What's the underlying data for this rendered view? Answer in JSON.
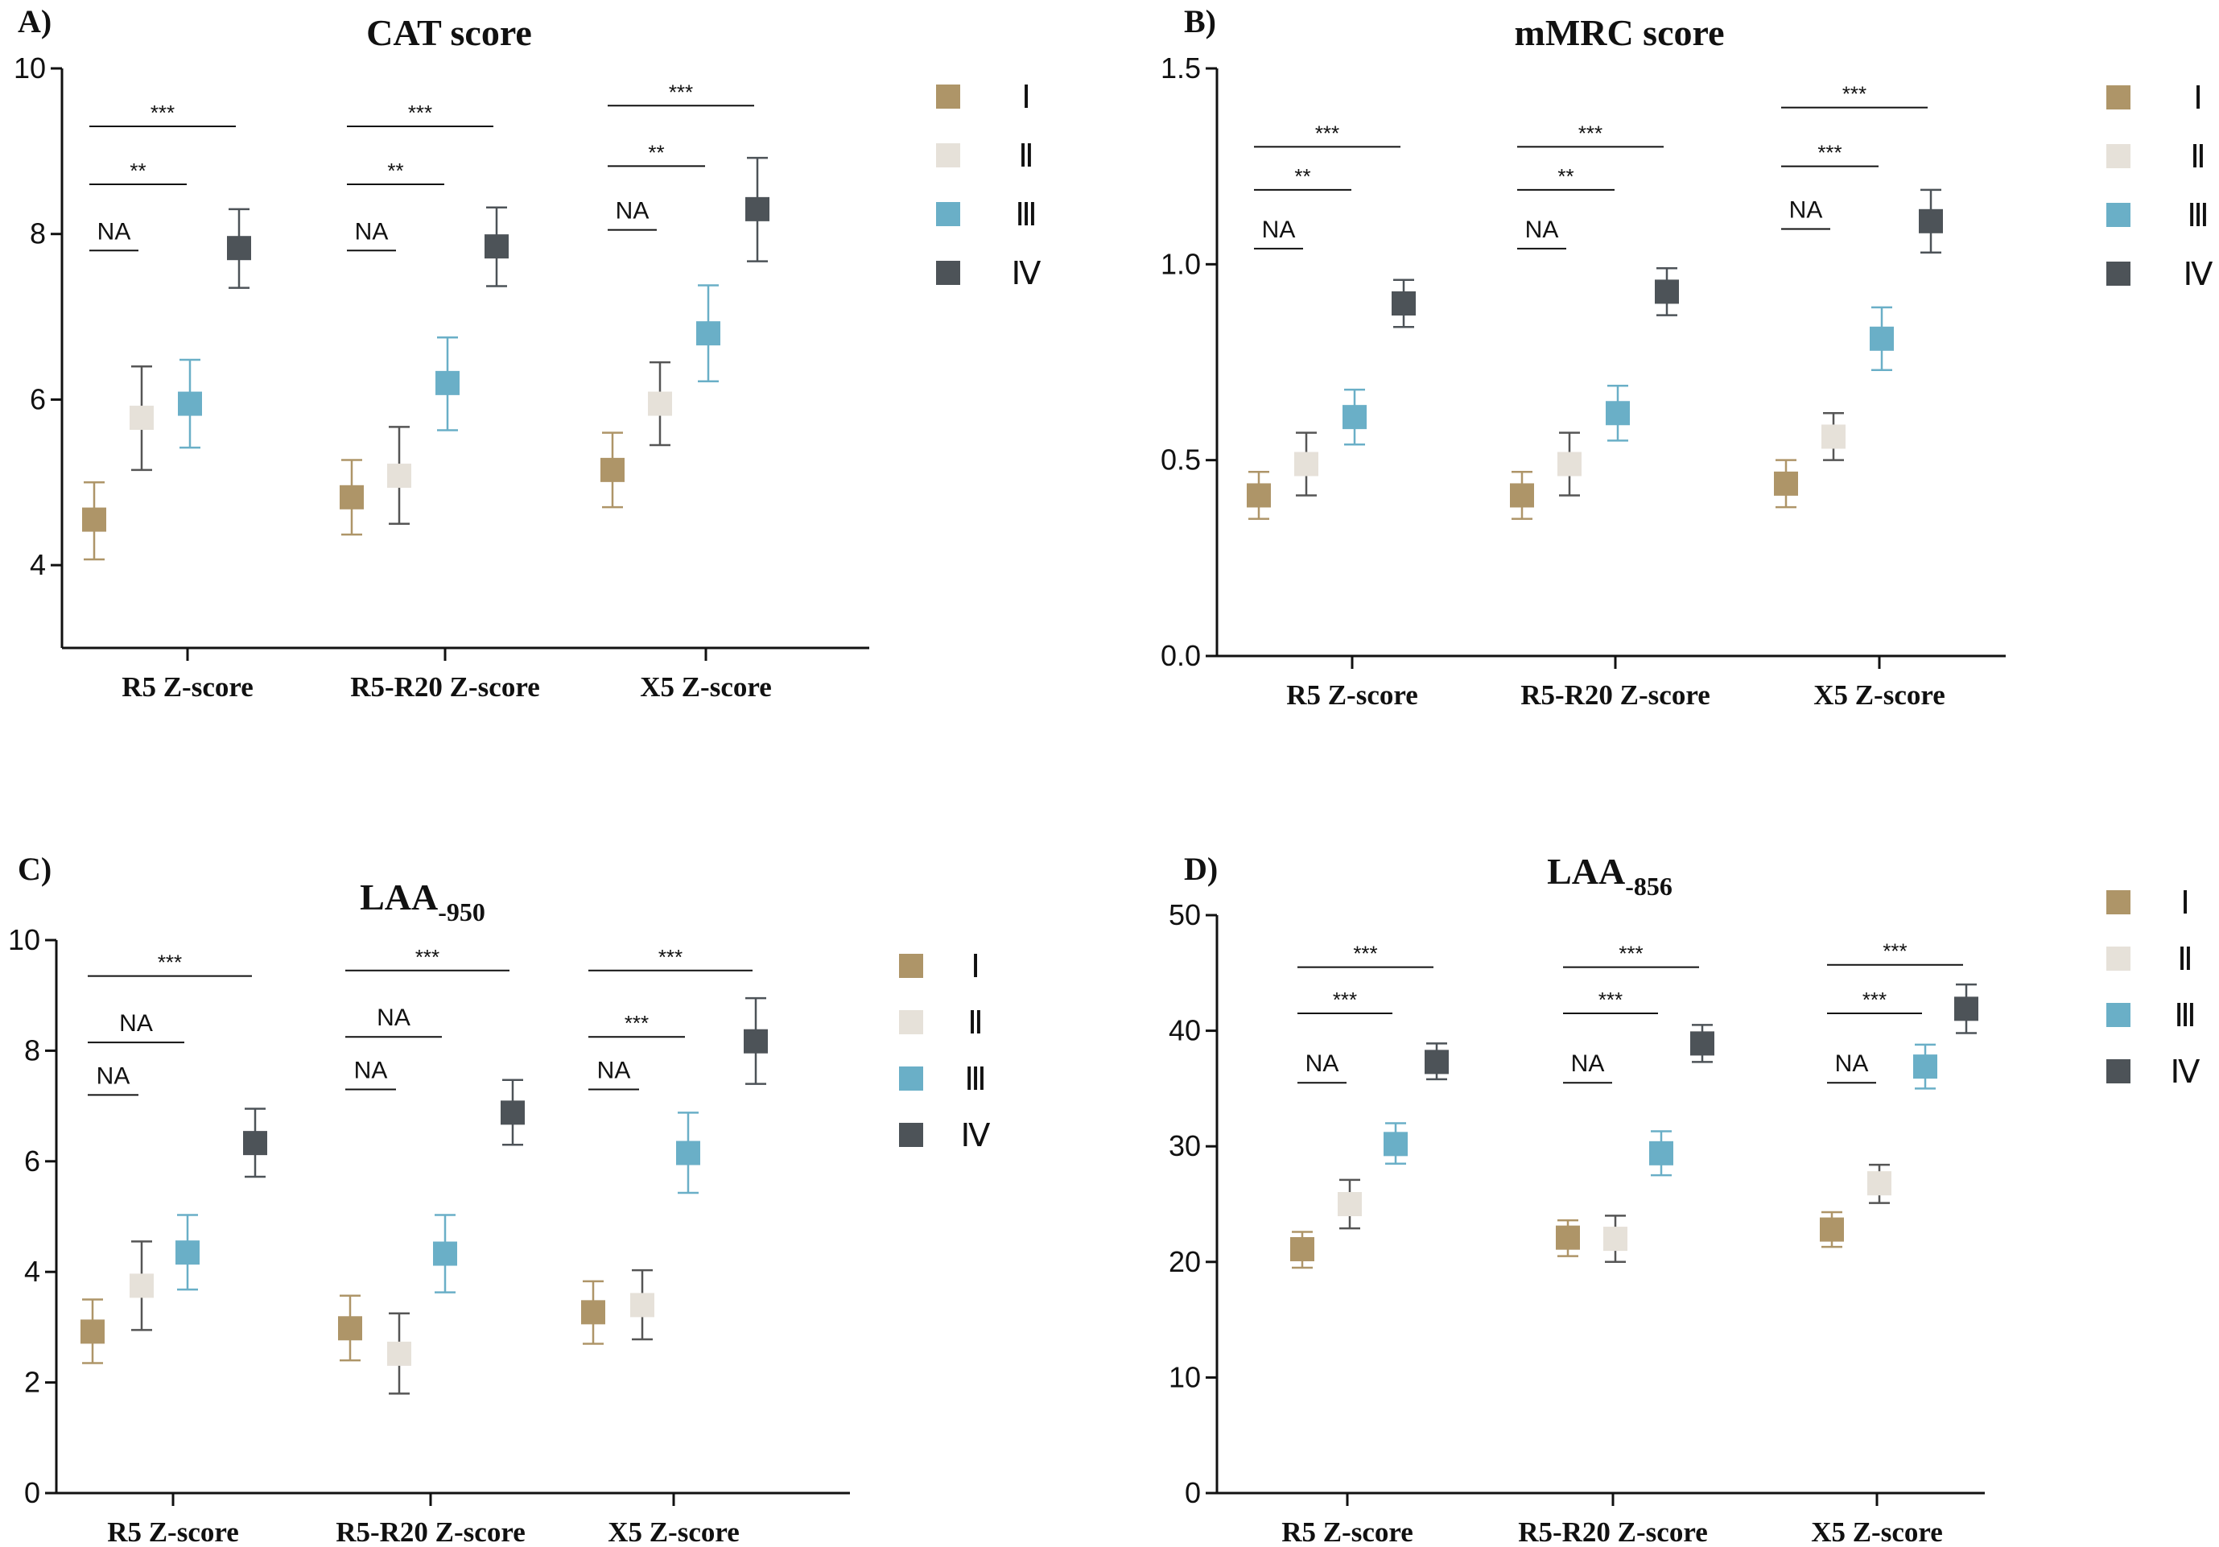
{
  "colors": {
    "I": "#ae9568",
    "II": "#e6e1d9",
    "III": "#6aafc7",
    "IV": "#4d5358",
    "axis": "#111111"
  },
  "chart_data": [
    {
      "type": "scatter",
      "panel_label": "A)",
      "title": "CAT score",
      "title_sub": "",
      "categories": [
        "R5 Z-score",
        "R5-R20 Z-score",
        "X5 Z-score"
      ],
      "ylim": [
        3,
        10
      ],
      "yticks": [
        "4",
        "6",
        "8",
        "10"
      ],
      "ytick_values": [
        4,
        6,
        8,
        10
      ],
      "legend": [
        "Ⅰ",
        "Ⅱ",
        "Ⅲ",
        "Ⅳ"
      ],
      "legend_placement": "right",
      "series": [
        {
          "name": "Ⅰ",
          "values": [
            4.55,
            4.82,
            5.15
          ],
          "low": [
            4.07,
            4.37,
            4.7
          ],
          "high": [
            5.0,
            5.27,
            5.6
          ]
        },
        {
          "name": "Ⅱ",
          "values": [
            5.78,
            5.08,
            5.95
          ],
          "low": [
            5.15,
            4.5,
            5.45
          ],
          "high": [
            6.4,
            5.67,
            6.45
          ]
        },
        {
          "name": "Ⅲ",
          "values": [
            5.95,
            6.2,
            6.8
          ],
          "low": [
            5.42,
            5.63,
            6.22
          ],
          "high": [
            6.48,
            6.75,
            7.38
          ]
        },
        {
          "name": "Ⅳ",
          "values": [
            7.83,
            7.85,
            8.3
          ],
          "low": [
            7.35,
            7.37,
            7.67
          ],
          "high": [
            8.3,
            8.32,
            8.92
          ]
        }
      ],
      "annotations": [
        {
          "group": 0,
          "from": 0,
          "to": 3,
          "level": 9.3,
          "text": "***"
        },
        {
          "group": 0,
          "from": 0,
          "to": 2,
          "level": 8.6,
          "text": "**"
        },
        {
          "group": 0,
          "from": 0,
          "to": 1,
          "level": 7.8,
          "text": "NA"
        },
        {
          "group": 1,
          "from": 0,
          "to": 3,
          "level": 9.3,
          "text": "***"
        },
        {
          "group": 1,
          "from": 0,
          "to": 2,
          "level": 8.6,
          "text": "**"
        },
        {
          "group": 1,
          "from": 0,
          "to": 1,
          "level": 7.8,
          "text": "NA"
        },
        {
          "group": 2,
          "from": 0,
          "to": 3,
          "level": 9.55,
          "text": "***"
        },
        {
          "group": 2,
          "from": 0,
          "to": 2,
          "level": 8.82,
          "text": "**"
        },
        {
          "group": 2,
          "from": 0,
          "to": 1,
          "level": 8.05,
          "text": "NA"
        }
      ]
    },
    {
      "type": "scatter",
      "panel_label": "B)",
      "title": "mMRC score",
      "title_sub": "",
      "categories": [
        "R5 Z-score",
        "R5-R20 Z-score",
        "X5 Z-score"
      ],
      "ylim": [
        0,
        1.5
      ],
      "yticks": [
        "0.0",
        "0.5",
        "1.0",
        "1.5"
      ],
      "ytick_values": [
        0,
        0.5,
        1.0,
        1.5
      ],
      "legend": [
        "Ⅰ",
        "Ⅱ",
        "Ⅲ",
        "Ⅳ"
      ],
      "legend_placement": "right",
      "series": [
        {
          "name": "Ⅰ",
          "values": [
            0.41,
            0.41,
            0.44
          ],
          "low": [
            0.35,
            0.35,
            0.38
          ],
          "high": [
            0.47,
            0.47,
            0.5
          ]
        },
        {
          "name": "Ⅱ",
          "values": [
            0.49,
            0.49,
            0.56
          ],
          "low": [
            0.41,
            0.41,
            0.5
          ],
          "high": [
            0.57,
            0.57,
            0.62
          ]
        },
        {
          "name": "Ⅲ",
          "values": [
            0.61,
            0.62,
            0.81
          ],
          "low": [
            0.54,
            0.55,
            0.73
          ],
          "high": [
            0.68,
            0.69,
            0.89
          ]
        },
        {
          "name": "Ⅳ",
          "values": [
            0.9,
            0.93,
            1.11
          ],
          "low": [
            0.84,
            0.87,
            1.03
          ],
          "high": [
            0.96,
            0.99,
            1.19
          ]
        }
      ],
      "annotations": [
        {
          "group": 0,
          "from": 0,
          "to": 3,
          "level": 1.3,
          "text": "***"
        },
        {
          "group": 0,
          "from": 0,
          "to": 2,
          "level": 1.19,
          "text": "**"
        },
        {
          "group": 0,
          "from": 0,
          "to": 1,
          "level": 1.04,
          "text": "NA"
        },
        {
          "group": 1,
          "from": 0,
          "to": 3,
          "level": 1.3,
          "text": "***"
        },
        {
          "group": 1,
          "from": 0,
          "to": 2,
          "level": 1.19,
          "text": "**"
        },
        {
          "group": 1,
          "from": 0,
          "to": 1,
          "level": 1.04,
          "text": "NA"
        },
        {
          "group": 2,
          "from": 0,
          "to": 3,
          "level": 1.4,
          "text": "***"
        },
        {
          "group": 2,
          "from": 0,
          "to": 2,
          "level": 1.25,
          "text": "***"
        },
        {
          "group": 2,
          "from": 0,
          "to": 1,
          "level": 1.09,
          "text": "NA"
        }
      ]
    },
    {
      "type": "scatter",
      "panel_label": "C)",
      "title": "LAA",
      "title_sub": "-950",
      "categories": [
        "R5 Z-score",
        "R5-R20 Z-score",
        "X5 Z-score"
      ],
      "ylim": [
        0,
        10
      ],
      "yticks": [
        "0",
        "2",
        "4",
        "6",
        "8",
        "10"
      ],
      "ytick_values": [
        0,
        2,
        4,
        6,
        8,
        10
      ],
      "legend": [
        "Ⅰ",
        "Ⅱ",
        "Ⅲ",
        "Ⅳ"
      ],
      "legend_placement": "right",
      "series": [
        {
          "name": "Ⅰ",
          "values": [
            2.92,
            2.98,
            3.27
          ],
          "low": [
            2.35,
            2.4,
            2.7
          ],
          "high": [
            3.5,
            3.57,
            3.83
          ]
        },
        {
          "name": "Ⅱ",
          "values": [
            3.75,
            2.52,
            3.4
          ],
          "low": [
            2.95,
            1.8,
            2.78
          ],
          "high": [
            4.55,
            3.25,
            4.03
          ]
        },
        {
          "name": "Ⅲ",
          "values": [
            4.35,
            4.33,
            6.15
          ],
          "low": [
            3.68,
            3.63,
            5.43
          ],
          "high": [
            5.03,
            5.03,
            6.88
          ]
        },
        {
          "name": "Ⅳ",
          "values": [
            6.33,
            6.88,
            8.17
          ],
          "low": [
            5.72,
            6.3,
            7.4
          ],
          "high": [
            6.95,
            7.47,
            8.95
          ]
        }
      ],
      "annotations": [
        {
          "group": 0,
          "from": 0,
          "to": 3,
          "level": 9.35,
          "text": "***"
        },
        {
          "group": 0,
          "from": 0,
          "to": 2,
          "level": 8.15,
          "text": "NA"
        },
        {
          "group": 0,
          "from": 0,
          "to": 1,
          "level": 7.2,
          "text": "NA"
        },
        {
          "group": 1,
          "from": 0,
          "to": 3,
          "level": 9.45,
          "text": "***"
        },
        {
          "group": 1,
          "from": 0,
          "to": 2,
          "level": 8.25,
          "text": "NA"
        },
        {
          "group": 1,
          "from": 0,
          "to": 1,
          "level": 7.3,
          "text": "NA"
        },
        {
          "group": 2,
          "from": 0,
          "to": 3,
          "level": 9.45,
          "text": "***"
        },
        {
          "group": 2,
          "from": 0,
          "to": 2,
          "level": 8.25,
          "text": "***"
        },
        {
          "group": 2,
          "from": 0,
          "to": 1,
          "level": 7.3,
          "text": "NA"
        }
      ]
    },
    {
      "type": "scatter",
      "panel_label": "D)",
      "title": "LAA",
      "title_sub": "-856",
      "categories": [
        "R5 Z-score",
        "R5-R20 Z-score",
        "X5 Z-score"
      ],
      "ylim": [
        0,
        50
      ],
      "yticks": [
        "0",
        "10",
        "20",
        "30",
        "40",
        "50"
      ],
      "ytick_values": [
        0,
        10,
        20,
        30,
        40,
        50
      ],
      "legend": [
        "Ⅰ",
        "Ⅱ",
        "Ⅲ",
        "Ⅳ"
      ],
      "legend_placement": "right",
      "series": [
        {
          "name": "Ⅰ",
          "values": [
            21.1,
            22.1,
            22.8
          ],
          "low": [
            19.5,
            20.5,
            21.3
          ],
          "high": [
            22.6,
            23.6,
            24.3
          ]
        },
        {
          "name": "Ⅱ",
          "values": [
            25.0,
            22.0,
            26.8
          ],
          "low": [
            22.9,
            20.0,
            25.1
          ],
          "high": [
            27.1,
            24.0,
            28.4
          ]
        },
        {
          "name": "Ⅲ",
          "values": [
            30.2,
            29.4,
            36.9
          ],
          "low": [
            28.5,
            27.5,
            35.0
          ],
          "high": [
            32.0,
            31.3,
            38.8
          ]
        },
        {
          "name": "Ⅳ",
          "values": [
            37.3,
            38.9,
            41.9
          ],
          "low": [
            35.8,
            37.3,
            39.8
          ],
          "high": [
            38.9,
            40.5,
            44.0
          ]
        }
      ],
      "annotations": [
        {
          "group": 0,
          "from": 0,
          "to": 3,
          "level": 45.5,
          "text": "***"
        },
        {
          "group": 0,
          "from": 0,
          "to": 2,
          "level": 41.5,
          "text": "***"
        },
        {
          "group": 0,
          "from": 0,
          "to": 1,
          "level": 35.5,
          "text": "NA"
        },
        {
          "group": 1,
          "from": 0,
          "to": 3,
          "level": 45.5,
          "text": "***"
        },
        {
          "group": 1,
          "from": 0,
          "to": 2,
          "level": 41.5,
          "text": "***"
        },
        {
          "group": 1,
          "from": 0,
          "to": 1,
          "level": 35.5,
          "text": "NA"
        },
        {
          "group": 2,
          "from": 0,
          "to": 3,
          "level": 45.7,
          "text": "***"
        },
        {
          "group": 2,
          "from": 0,
          "to": 2,
          "level": 41.5,
          "text": "***"
        },
        {
          "group": 2,
          "from": 0,
          "to": 1,
          "level": 35.5,
          "text": "NA"
        }
      ]
    }
  ]
}
